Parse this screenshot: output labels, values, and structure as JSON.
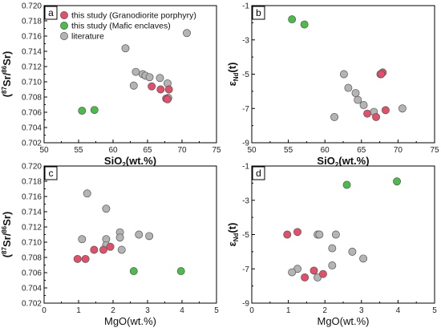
{
  "colors": {
    "this_study_granodiorite": "#e0506a",
    "this_study_mafic": "#4cbb4c",
    "literature": "#b4b4b4",
    "marker_edge": "#555555"
  },
  "legend": {
    "granodiorite": "this study (Granodiorite porphyry)",
    "mafic": "this study (Mafic enclaves)",
    "literature": "literature"
  },
  "chart_data": [
    {
      "panel": "a",
      "type": "scatter",
      "xlabel": "SiO2(wt.%)",
      "ylabel": "(87Sr/86Sr)",
      "xlim": [
        50,
        75
      ],
      "ylim": [
        0.702,
        0.72
      ],
      "xticks": [
        "50",
        "55",
        "60",
        "65",
        "70",
        "75"
      ],
      "yticks": [
        "0.702",
        "0.704",
        "0.706",
        "0.708",
        "0.710",
        "0.712",
        "0.714",
        "0.716",
        "0.718",
        "0.720"
      ],
      "series": [
        {
          "name": "literature",
          "points": [
            [
              61.8,
              0.7144
            ],
            [
              70.7,
              0.7164
            ],
            [
              63.3,
              0.7113
            ],
            [
              64.3,
              0.711
            ],
            [
              64.7,
              0.7108
            ],
            [
              65.3,
              0.7106
            ],
            [
              66.8,
              0.7105
            ],
            [
              67.9,
              0.7098
            ],
            [
              63.0,
              0.7095
            ],
            [
              68.0,
              0.7079
            ]
          ]
        },
        {
          "name": "this study (Granodiorite porphyry)",
          "points": [
            [
              65.6,
              0.7094
            ],
            [
              66.9,
              0.709
            ],
            [
              68.1,
              0.709
            ],
            [
              67.7,
              0.7078
            ],
            [
              67.9,
              0.7077
            ]
          ]
        },
        {
          "name": "this study (Mafic enclaves)",
          "points": [
            [
              55.5,
              0.7062
            ],
            [
              57.3,
              0.7063
            ]
          ]
        }
      ]
    },
    {
      "panel": "b",
      "type": "scatter",
      "xlabel": "SiO2(wt.%)",
      "ylabel": "εNd(t)",
      "xlim": [
        50,
        75
      ],
      "ylim": [
        -9,
        -1
      ],
      "xticks": [
        "50",
        "55",
        "60",
        "65",
        "70",
        "75"
      ],
      "yticks": [
        "-1",
        "-3",
        "-5",
        "-7",
        "-9"
      ],
      "series": [
        {
          "name": "literature",
          "points": [
            [
              62.6,
              -5.0
            ],
            [
              67.6,
              -5.0
            ],
            [
              63.2,
              -5.8
            ],
            [
              64.2,
              -6.1
            ],
            [
              64.5,
              -6.5
            ],
            [
              65.3,
              -6.8
            ],
            [
              66.7,
              -7.2
            ],
            [
              70.6,
              -7.0
            ],
            [
              61.3,
              -7.5
            ]
          ]
        },
        {
          "name": "this study (Granodiorite porphyry)",
          "points": [
            [
              67.9,
              -4.9
            ],
            [
              67.7,
              -5.0
            ],
            [
              65.8,
              -7.3
            ],
            [
              67.0,
              -7.5
            ],
            [
              68.3,
              -7.1
            ]
          ]
        },
        {
          "name": "this study (Mafic enclaves)",
          "points": [
            [
              55.5,
              -1.8
            ],
            [
              57.2,
              -2.1
            ]
          ]
        }
      ]
    },
    {
      "panel": "c",
      "type": "scatter",
      "xlabel": "MgO(wt.%)",
      "ylabel": "(87Sr/86Sr)",
      "xlim": [
        0,
        5
      ],
      "ylim": [
        0.702,
        0.72
      ],
      "xticks": [
        "0",
        "1",
        "2",
        "3",
        "4",
        "5"
      ],
      "yticks": [
        "0.702",
        "0.704",
        "0.706",
        "0.708",
        "0.710",
        "0.712",
        "0.714",
        "0.716",
        "0.718",
        "0.720"
      ],
      "series": [
        {
          "name": "literature",
          "points": [
            [
              1.25,
              0.7164
            ],
            [
              1.8,
              0.7144
            ],
            [
              2.2,
              0.7113
            ],
            [
              2.2,
              0.7106
            ],
            [
              2.75,
              0.711
            ],
            [
              3.05,
              0.7108
            ],
            [
              1.1,
              0.7104
            ],
            [
              1.8,
              0.7104
            ],
            [
              1.8,
              0.7096
            ],
            [
              2.25,
              0.709
            ]
          ]
        },
        {
          "name": "this study (Granodiorite porphyry)",
          "points": [
            [
              0.97,
              0.7078
            ],
            [
              1.2,
              0.7078
            ],
            [
              1.45,
              0.709
            ],
            [
              1.72,
              0.709
            ],
            [
              1.92,
              0.7094
            ]
          ]
        },
        {
          "name": "this study (Mafic enclaves)",
          "points": [
            [
              2.6,
              0.7062
            ],
            [
              3.97,
              0.7062
            ]
          ]
        }
      ]
    },
    {
      "panel": "d",
      "type": "scatter",
      "xlabel": "MgO(wt.%)",
      "ylabel": "εNd(t)",
      "xlim": [
        0,
        5
      ],
      "ylim": [
        -9,
        -1
      ],
      "xticks": [
        "0",
        "1",
        "2",
        "3",
        "4",
        "5"
      ],
      "yticks": [
        "-1",
        "-3",
        "-5",
        "-7",
        "-9"
      ],
      "series": [
        {
          "name": "literature",
          "points": [
            [
              1.8,
              -5.0
            ],
            [
              1.85,
              -5.0
            ],
            [
              2.3,
              -5.0
            ],
            [
              2.2,
              -5.8
            ],
            [
              2.75,
              -6.0
            ],
            [
              3.05,
              -6.4
            ],
            [
              1.25,
              -7.0
            ],
            [
              1.1,
              -7.2
            ],
            [
              2.2,
              -6.8
            ],
            [
              1.8,
              -7.5
            ]
          ]
        },
        {
          "name": "this study (Granodiorite porphyry)",
          "points": [
            [
              0.97,
              -5.0
            ],
            [
              1.25,
              -4.85
            ],
            [
              1.7,
              -7.1
            ],
            [
              1.45,
              -7.5
            ],
            [
              1.95,
              -7.3
            ]
          ]
        },
        {
          "name": "this study (Mafic enclaves)",
          "points": [
            [
              2.6,
              -2.1
            ],
            [
              3.97,
              -1.9
            ]
          ]
        }
      ]
    }
  ]
}
